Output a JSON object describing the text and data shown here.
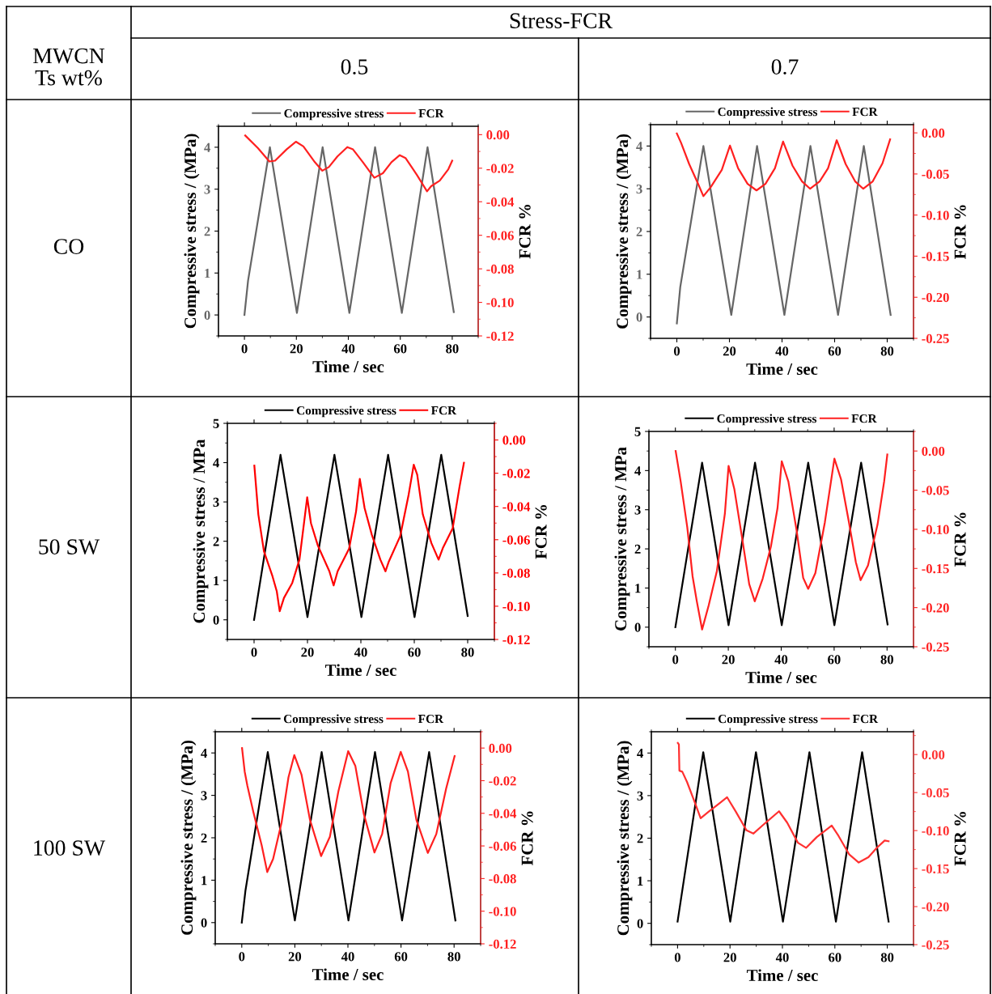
{
  "chart_data": [
    {
      "type": "other",
      "annotations": [
        "Stress-FCR",
        "MWCN\nTs wt%",
        "0.5",
        "0.7",
        "CO",
        "50 SW",
        "100 SW"
      ]
    },
    {
      "type": "line",
      "xlabel": "Time / sec",
      "ylabel": "Compressive stress / (MPa)",
      "y2label": "FCR %",
      "legend": "top",
      "xlim": [
        -10,
        90
      ],
      "xticks": [
        0,
        20,
        40,
        60,
        80
      ],
      "ylim": [
        -0.5,
        4.5
      ],
      "yticks": [
        0,
        1,
        2,
        3,
        4
      ],
      "y2lim": [
        -0.12,
        0.005
      ],
      "y2ticks": [
        -0.12,
        {
          "value": -0.1,
          "label": "-0.10"
        },
        -0.08,
        -0.06,
        -0.04,
        -0.02,
        {
          "value": 0,
          "label": "0.00"
        }
      ],
      "series": [
        {
          "name": "Compressive stress",
          "color": "#666666",
          "x": [
            0,
            1.4,
            9.8,
            20.2,
            30.1,
            40.4,
            50.3,
            60.6,
            70.5,
            80.6
          ],
          "values": [
            0,
            0.82,
            4.0,
            0.05,
            4.0,
            0.05,
            4.0,
            0.05,
            4.0,
            0.07
          ]
        },
        {
          "name": "FCR",
          "color": "#ff2020",
          "axis": "y2",
          "x": [
            0.3,
            5.2,
            9.6,
            11.8,
            16.2,
            19.8,
            22.7,
            27.1,
            30,
            32.5,
            35.8,
            39.6,
            41.8,
            45.6,
            50,
            53.3,
            56.6,
            59.8,
            62,
            66.4,
            70.3,
            71.9,
            75.2,
            78.5,
            80
          ],
          "values": [
            -0.0005,
            -0.008,
            -0.016,
            -0.0155,
            -0.0088,
            -0.0042,
            -0.007,
            -0.0164,
            -0.0215,
            -0.0193,
            -0.013,
            -0.0074,
            -0.0088,
            -0.0164,
            -0.0257,
            -0.023,
            -0.0164,
            -0.0122,
            -0.0139,
            -0.024,
            -0.0338,
            -0.0307,
            -0.0274,
            -0.0206,
            -0.0155
          ]
        }
      ]
    },
    {
      "type": "line",
      "xlabel": "Time / sec",
      "ylabel": "Compressive stress / (MPa)",
      "y2label": "FCR %",
      "legend": "top",
      "xlim": [
        -10,
        90
      ],
      "xticks": [
        0,
        20,
        40,
        60,
        80
      ],
      "ylim": [
        -0.5,
        4.5
      ],
      "yticks": [
        0,
        1,
        2,
        3,
        4
      ],
      "y2lim": [
        -0.25,
        0.01
      ],
      "y2ticks": [
        -0.25,
        {
          "value": -0.2,
          "label": "-0.20"
        },
        -0.15,
        {
          "value": -0.1,
          "label": "-0.10"
        },
        -0.05,
        {
          "value": 0,
          "label": "0.00"
        }
      ],
      "series": [
        {
          "name": "Compressive stress",
          "color": "#666666",
          "x": [
            0,
            1.3,
            10.1,
            20.7,
            30.5,
            40.9,
            50.8,
            61.3,
            71.1,
            81.3
          ],
          "values": [
            -0.15,
            0.7,
            4.0,
            0.05,
            4.0,
            0.05,
            4.0,
            0.05,
            4.0,
            0.05
          ]
        },
        {
          "name": "FCR",
          "color": "#ff2020",
          "axis": "y2",
          "x": [
            0,
            1.6,
            4.7,
            7.8,
            10.1,
            12.9,
            17.1,
            20.2,
            23.3,
            26.9,
            30.3,
            33.7,
            37.3,
            40.4,
            44,
            47.6,
            50.7,
            54.3,
            57.5,
            60.8,
            64.2,
            67.8,
            70.9,
            74.5,
            78.2,
            81.1
          ],
          "values": [
            -0.0007,
            -0.012,
            -0.038,
            -0.06,
            -0.077,
            -0.066,
            -0.045,
            -0.0155,
            -0.043,
            -0.062,
            -0.07,
            -0.062,
            -0.043,
            -0.0105,
            -0.04,
            -0.059,
            -0.068,
            -0.059,
            -0.043,
            -0.0089,
            -0.038,
            -0.059,
            -0.068,
            -0.059,
            -0.037,
            -0.0079
          ]
        }
      ]
    },
    {
      "type": "line",
      "xlabel": "Time / sec",
      "ylabel": "Compressive stress / MPa",
      "y2label": "FCR %",
      "legend": "top",
      "xlim": [
        -10,
        90
      ],
      "xticks": [
        0,
        20,
        40,
        60,
        80
      ],
      "ylim": [
        -0.5,
        5
      ],
      "yticks": [
        0,
        1,
        2,
        3,
        4,
        5
      ],
      "y2lim": [
        -0.12,
        0.01
      ],
      "y2ticks": [
        -0.12,
        {
          "value": -0.1,
          "label": "-0.10"
        },
        -0.08,
        -0.06,
        -0.04,
        -0.02,
        {
          "value": 0,
          "label": "0.00"
        }
      ],
      "series": [
        {
          "name": "Compressive stress",
          "color": "#000000",
          "x": [
            0,
            9.9,
            20.0,
            30.1,
            40.2,
            50.2,
            60.1,
            70.1,
            80
          ],
          "values": [
            0,
            4.2,
            0.07,
            4.2,
            0.07,
            4.2,
            0.07,
            4.2,
            0.1
          ]
        },
        {
          "name": "FCR",
          "color": "#ff0000",
          "axis": "y2",
          "x": [
            0.1,
            1.6,
            3.7,
            6.9,
            8.5,
            9.6,
            11.2,
            14.3,
            17,
            19.1,
            19.9,
            21.3,
            23.9,
            28.2,
            29.8,
            31.3,
            35.6,
            38.2,
            39.6,
            41.4,
            44.1,
            47.3,
            49.2,
            50.5,
            54.7,
            57.9,
            59.8,
            61.1,
            63.2,
            66.4,
            69.1,
            70.7,
            74.4,
            77,
            78.6
          ],
          "values": [
            -0.0154,
            -0.0448,
            -0.067,
            -0.082,
            -0.091,
            -0.103,
            -0.095,
            -0.086,
            -0.072,
            -0.0448,
            -0.0345,
            -0.05,
            -0.0636,
            -0.079,
            -0.0875,
            -0.079,
            -0.0653,
            -0.043,
            -0.0234,
            -0.041,
            -0.057,
            -0.072,
            -0.079,
            -0.073,
            -0.058,
            -0.0328,
            -0.0149,
            -0.0209,
            -0.0448,
            -0.062,
            -0.072,
            -0.065,
            -0.053,
            -0.0277,
            -0.0137
          ]
        }
      ]
    },
    {
      "type": "line",
      "xlabel": "Time / sec",
      "ylabel": "Compressive stress / MPa",
      "y2label": "FCR %",
      "legend": "top",
      "xlim": [
        -10,
        90
      ],
      "xticks": [
        0,
        20,
        40,
        60,
        80
      ],
      "ylim": [
        -0.5,
        5
      ],
      "yticks": [
        0,
        1,
        2,
        3,
        4,
        5
      ],
      "y2lim": [
        -0.25,
        0.025
      ],
      "y2ticks": [
        -0.25,
        {
          "value": -0.2,
          "label": "-0.20"
        },
        -0.15,
        {
          "value": -0.1,
          "label": "-0.10"
        },
        -0.05,
        {
          "value": 0,
          "label": "0.00"
        }
      ],
      "series": [
        {
          "name": "Compressive stress",
          "color": "#000000",
          "x": [
            0,
            10.1,
            20.1,
            30.1,
            40.2,
            50.2,
            60.1,
            70.2,
            80.2
          ],
          "values": [
            0,
            4.2,
            0.05,
            4.2,
            0.05,
            4.2,
            0.05,
            4.2,
            0.07
          ]
        },
        {
          "name": "FCR",
          "color": "#ff2020",
          "axis": "y2",
          "x": [
            0.1,
            2,
            4.5,
            6.5,
            8.1,
            10.1,
            12.6,
            15.7,
            18.7,
            20.1,
            22.3,
            25.4,
            27.9,
            30,
            33,
            36.1,
            38.6,
            40.2,
            42.7,
            45.8,
            48.3,
            50.2,
            52.9,
            56.5,
            60.1,
            62.6,
            65.6,
            68.2,
            70,
            72.8,
            76.4,
            78.9,
            80.1
          ],
          "values": [
            0,
            -0.039,
            -0.0976,
            -0.16,
            -0.192,
            -0.228,
            -0.197,
            -0.153,
            -0.08,
            -0.019,
            -0.049,
            -0.115,
            -0.17,
            -0.192,
            -0.163,
            -0.122,
            -0.073,
            -0.013,
            -0.039,
            -0.101,
            -0.162,
            -0.176,
            -0.156,
            -0.091,
            -0.0097,
            -0.036,
            -0.091,
            -0.142,
            -0.165,
            -0.146,
            -0.094,
            -0.039,
            -0.0045
          ]
        }
      ]
    },
    {
      "type": "line",
      "xlabel": "Time / sec",
      "ylabel": "Compressive stress / (MPa)",
      "y2label": "FCR %",
      "legend": "top",
      "xlim": [
        -10,
        90
      ],
      "xticks": [
        0,
        20,
        40,
        60,
        80
      ],
      "ylim": [
        -0.5,
        4.5
      ],
      "yticks": [
        0,
        1,
        2,
        3,
        4
      ],
      "y2lim": [
        -0.12,
        0.01
      ],
      "y2ticks": [
        -0.12,
        {
          "value": -0.1,
          "label": "-0.10"
        },
        -0.08,
        -0.06,
        -0.04,
        -0.02,
        {
          "value": 0,
          "label": "0.00"
        }
      ],
      "series": [
        {
          "name": "Compressive stress",
          "color": "#000000",
          "x": [
            0,
            1.4,
            9.8,
            20.0,
            30.1,
            40.2,
            50.2,
            60.4,
            70.6,
            80.5
          ],
          "values": [
            0,
            0.76,
            4.02,
            0.05,
            4.02,
            0.05,
            4.02,
            0.05,
            4.02,
            0.05
          ]
        },
        {
          "name": "FCR",
          "color": "#ff2020",
          "axis": "y2",
          "x": [
            0.1,
            1.1,
            2.1,
            4.3,
            7.5,
            9.6,
            11.8,
            15,
            17.6,
            19.8,
            22.5,
            25.7,
            29.9,
            33.2,
            36.4,
            40.1,
            42.8,
            46,
            50,
            52.9,
            56.1,
            59.9,
            62.6,
            65.8,
            70.1,
            73.3,
            77,
            80.2
          ],
          "values": [
            0,
            -0.0144,
            -0.023,
            -0.0387,
            -0.0596,
            -0.076,
            -0.068,
            -0.0457,
            -0.0179,
            -0.0043,
            -0.0162,
            -0.044,
            -0.0662,
            -0.0544,
            -0.0266,
            -0.0019,
            -0.011,
            -0.0405,
            -0.064,
            -0.0527,
            -0.0214,
            -0.0023,
            -0.0144,
            -0.044,
            -0.0643,
            -0.0527,
            -0.0249,
            -0.0049
          ]
        }
      ]
    },
    {
      "type": "line",
      "xlabel": "Time / sec",
      "ylabel": "Compressive stress / (MPa)",
      "y2label": "FCR %",
      "legend": "top",
      "xlim": [
        -10,
        90
      ],
      "xticks": [
        0,
        20,
        40,
        60,
        80
      ],
      "ylim": [
        -0.5,
        4.5
      ],
      "yticks": [
        0,
        1,
        2,
        3,
        4
      ],
      "y2lim": [
        -0.25,
        0.03
      ],
      "y2ticks": [
        -0.25,
        {
          "value": -0.2,
          "label": "-0.20"
        },
        -0.15,
        {
          "value": -0.1,
          "label": "-0.10"
        },
        -0.05,
        {
          "value": 0,
          "label": "0.00"
        }
      ],
      "series": [
        {
          "name": "Compressive stress",
          "color": "#000000",
          "x": [
            0,
            9.8,
            20.1,
            29.9,
            40.2,
            50.3,
            60.4,
            70.4,
            80.5
          ],
          "values": [
            0.04,
            4.02,
            0.04,
            4.02,
            0.04,
            4.02,
            0.04,
            4.02,
            0.04
          ]
        },
        {
          "name": "FCR",
          "color": "#ff3030",
          "axis": "y2",
          "x": [
            0.1,
            0.5,
            0.7,
            1.8,
            3.6,
            6.7,
            8.8,
            11.9,
            16,
            18.9,
            22.2,
            26.3,
            28.9,
            32.5,
            38.7,
            41.8,
            45.9,
            49,
            53.1,
            58.8,
            61.4,
            65.5,
            69.1,
            72.8,
            75.9,
            79,
            80.5
          ],
          "values": [
            0.0152,
            0.0134,
            -0.0212,
            -0.0226,
            -0.036,
            -0.064,
            -0.0838,
            -0.075,
            -0.064,
            -0.0562,
            -0.075,
            -0.0997,
            -0.104,
            -0.093,
            -0.0746,
            -0.0895,
            -0.116,
            -0.1227,
            -0.1085,
            -0.0934,
            -0.107,
            -0.1315,
            -0.142,
            -0.135,
            -0.123,
            -0.113,
            -0.114
          ]
        }
      ]
    }
  ]
}
